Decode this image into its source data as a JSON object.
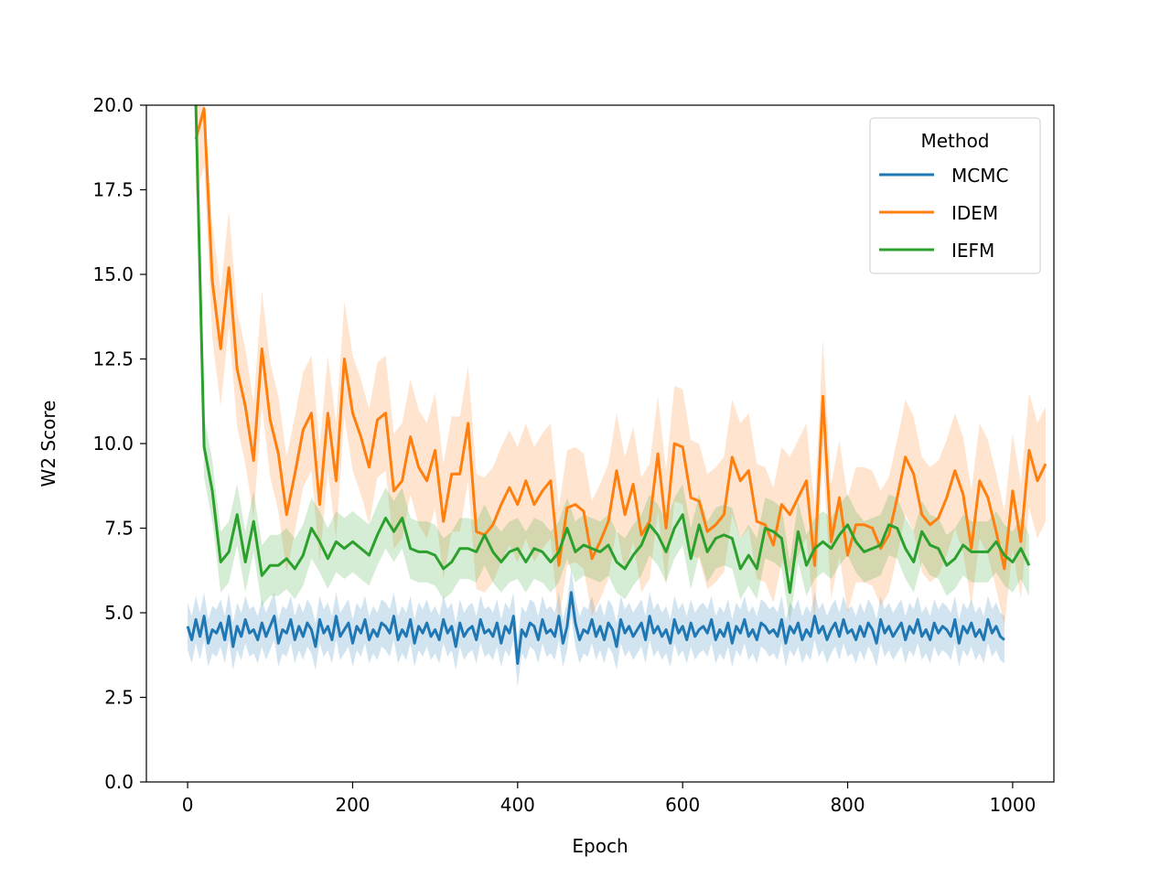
{
  "chart_data": {
    "type": "line",
    "xlabel": "Epoch",
    "ylabel": "W2 Score",
    "xlim": [
      -50,
      1050
    ],
    "ylim": [
      0,
      20
    ],
    "x_ticks": [
      0,
      200,
      400,
      600,
      800,
      1000
    ],
    "x_tick_labels": [
      "0",
      "200",
      "400",
      "600",
      "800",
      "1000"
    ],
    "y_ticks": [
      0,
      2.5,
      5,
      7.5,
      10,
      12.5,
      15,
      17.5,
      20
    ],
    "y_tick_labels": [
      "0.0",
      "2.5",
      "5.0",
      "7.5",
      "10.0",
      "12.5",
      "15.0",
      "17.5",
      "20.0"
    ],
    "grid": false,
    "legend": {
      "title": "Method",
      "placement": "top-right"
    },
    "series": [
      {
        "name": "MCMC",
        "color": "#1f77b4",
        "band": true,
        "x_start": 0,
        "x_step": 5,
        "values": [
          4.6,
          4.2,
          4.8,
          4.3,
          4.9,
          4.1,
          4.5,
          4.4,
          4.7,
          4.2,
          4.9,
          4.0,
          4.6,
          4.3,
          4.8,
          4.4,
          4.5,
          4.2,
          4.7,
          4.3,
          4.6,
          4.9,
          4.1,
          4.5,
          4.4,
          4.8,
          4.2,
          4.6,
          4.3,
          4.7,
          4.5,
          4.0,
          4.8,
          4.4,
          4.6,
          4.2,
          4.9,
          4.3,
          4.5,
          4.7,
          4.1,
          4.6,
          4.4,
          4.8,
          4.2,
          4.5,
          4.3,
          4.7,
          4.6,
          4.4,
          4.9,
          4.2,
          4.5,
          4.3,
          4.8,
          4.1,
          4.6,
          4.4,
          4.7,
          4.3,
          4.5,
          4.2,
          4.8,
          4.4,
          4.6,
          4.0,
          4.7,
          4.3,
          4.5,
          4.6,
          4.2,
          4.8,
          4.4,
          4.5,
          4.3,
          4.7,
          4.1,
          4.6,
          4.4,
          4.9,
          3.5,
          4.5,
          4.3,
          4.7,
          4.6,
          4.2,
          4.8,
          4.4,
          4.5,
          4.3,
          4.9,
          4.1,
          4.6,
          5.6,
          4.7,
          4.2,
          4.5,
          4.4,
          4.8,
          4.3,
          4.6,
          4.2,
          4.7,
          4.5,
          4.0,
          4.8,
          4.4,
          4.6,
          4.3,
          4.5,
          4.7,
          4.2,
          4.9,
          4.4,
          4.6,
          4.3,
          4.5,
          4.1,
          4.8,
          4.4,
          4.6,
          4.2,
          4.7,
          4.3,
          4.5,
          4.6,
          4.4,
          4.8,
          4.2,
          4.5,
          4.3,
          4.7,
          4.1,
          4.6,
          4.4,
          4.8,
          4.3,
          4.5,
          4.2,
          4.7,
          4.6,
          4.4,
          4.5,
          4.3,
          4.8,
          4.1,
          4.6,
          4.4,
          4.7,
          4.2,
          4.5,
          4.3,
          4.9,
          4.4,
          4.6,
          4.2,
          4.5,
          4.7,
          4.3,
          4.8,
          4.4,
          4.5,
          4.2,
          4.6,
          4.3,
          4.7,
          4.5,
          4.1,
          4.8,
          4.4,
          4.6,
          4.3,
          4.5,
          4.7,
          4.2,
          4.6,
          4.4,
          4.8,
          4.3,
          4.5,
          4.2,
          4.7,
          4.4,
          4.6,
          4.5,
          4.3,
          4.8,
          4.1,
          4.6,
          4.4,
          4.7,
          4.3,
          4.5,
          4.2,
          4.8,
          4.4,
          4.6,
          4.3,
          4.2
        ],
        "band_width": 0.7
      },
      {
        "name": "IDEM",
        "color": "#ff7f0e",
        "band": true,
        "x_start": 10,
        "x_step": 10,
        "values": [
          19.0,
          19.9,
          14.8,
          12.8,
          15.2,
          12.2,
          11.1,
          9.5,
          12.8,
          10.7,
          9.7,
          7.9,
          9.1,
          10.4,
          10.9,
          8.2,
          10.9,
          8.9,
          12.5,
          10.9,
          10.2,
          9.3,
          10.7,
          10.9,
          8.6,
          8.9,
          10.2,
          9.3,
          8.9,
          9.8,
          7.7,
          9.1,
          9.1,
          10.6,
          7.4,
          7.3,
          7.6,
          8.2,
          8.7,
          8.2,
          8.9,
          8.2,
          8.6,
          8.9,
          6.4,
          8.1,
          8.2,
          8.0,
          6.6,
          7.1,
          7.7,
          9.2,
          7.9,
          8.8,
          7.3,
          7.7,
          9.7,
          7.5,
          10.0,
          9.9,
          8.4,
          8.3,
          7.4,
          7.6,
          7.9,
          9.6,
          8.9,
          9.2,
          7.7,
          7.6,
          7.0,
          8.2,
          7.9,
          8.4,
          8.9,
          6.4,
          11.4,
          7.1,
          8.4,
          6.7,
          7.6,
          7.6,
          7.5,
          6.9,
          7.3,
          8.4,
          9.6,
          9.1,
          7.9,
          7.6,
          7.8,
          8.4,
          9.2,
          8.5,
          6.9,
          8.9,
          8.4,
          7.4,
          6.3,
          8.6,
          7.1,
          9.8,
          8.9,
          9.4
        ],
        "band_width": 1.7
      },
      {
        "name": "IEFM",
        "color": "#2ca02c",
        "band": true,
        "x_start": 10,
        "x_step": 10,
        "values": [
          20.0,
          9.9,
          8.6,
          6.5,
          6.8,
          7.9,
          6.5,
          7.7,
          6.1,
          6.4,
          6.4,
          6.6,
          6.3,
          6.7,
          7.5,
          7.1,
          6.6,
          7.1,
          6.9,
          7.1,
          6.9,
          6.7,
          7.3,
          7.8,
          7.4,
          7.8,
          6.9,
          6.8,
          6.8,
          6.7,
          6.3,
          6.5,
          6.9,
          6.9,
          6.8,
          7.3,
          6.8,
          6.5,
          6.8,
          6.9,
          6.5,
          6.9,
          6.8,
          6.5,
          6.8,
          7.5,
          6.8,
          7.0,
          6.9,
          6.8,
          7.0,
          6.5,
          6.3,
          6.7,
          7.0,
          7.6,
          7.3,
          6.8,
          7.5,
          7.9,
          6.6,
          7.6,
          6.8,
          7.2,
          7.3,
          7.2,
          6.3,
          6.7,
          6.3,
          7.5,
          7.4,
          7.2,
          5.6,
          7.4,
          6.4,
          6.9,
          7.1,
          6.9,
          7.3,
          7.6,
          7.1,
          6.8,
          6.9,
          7.0,
          7.6,
          7.5,
          6.9,
          6.5,
          7.4,
          7.0,
          6.9,
          6.4,
          6.6,
          7.0,
          6.8,
          6.8,
          6.8,
          7.1,
          6.7,
          6.5,
          6.9,
          6.4
        ],
        "band_width": 0.9
      }
    ]
  }
}
